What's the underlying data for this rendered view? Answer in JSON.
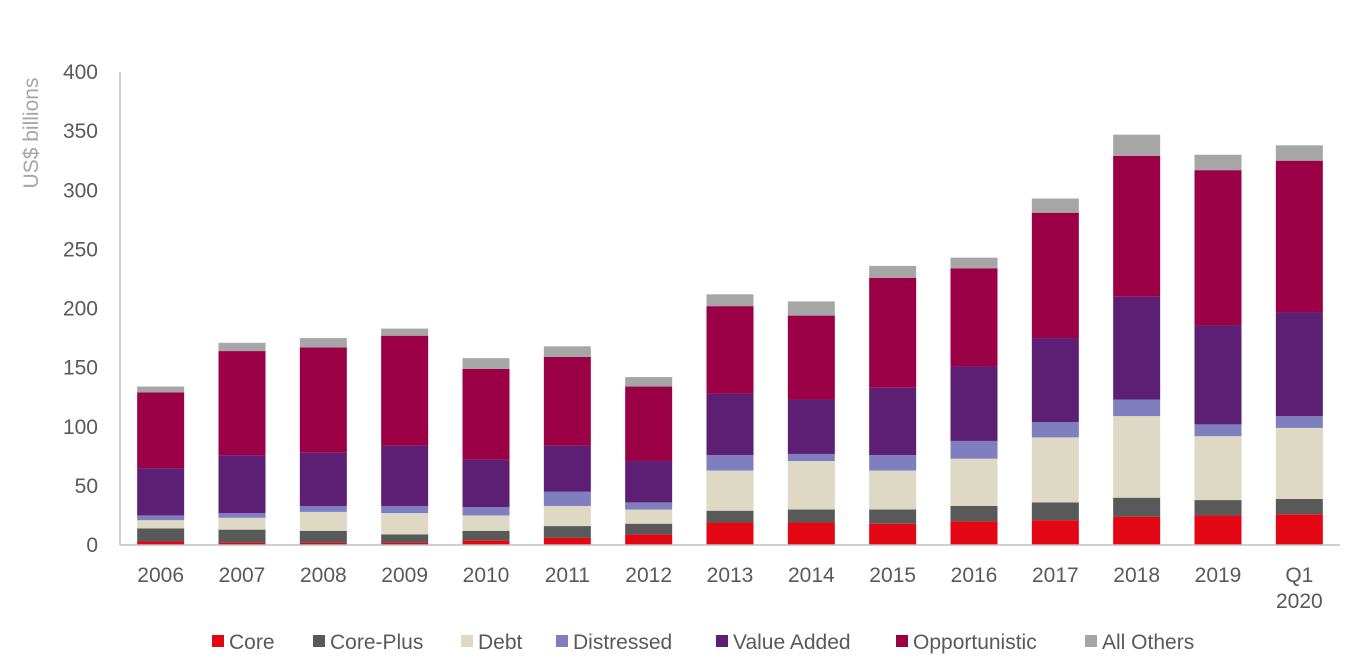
{
  "chart_data": {
    "type": "bar",
    "stacked": true,
    "title": "",
    "xlabel": "",
    "ylabel": "US$ billions",
    "ylim": [
      0,
      400
    ],
    "yticks": [
      0,
      50,
      100,
      150,
      200,
      250,
      300,
      350,
      400
    ],
    "grid": false,
    "legend_position": "bottom",
    "categories": [
      [
        "2006"
      ],
      [
        "2007"
      ],
      [
        "2008"
      ],
      [
        "2009"
      ],
      [
        "2010"
      ],
      [
        "2011"
      ],
      [
        "2012"
      ],
      [
        "2013"
      ],
      [
        "2014"
      ],
      [
        "2015"
      ],
      [
        "2016"
      ],
      [
        "2017"
      ],
      [
        "2018"
      ],
      [
        "2019"
      ],
      [
        "Q1",
        "2020"
      ]
    ],
    "series": [
      {
        "name": "Core",
        "color": "#e30613",
        "values": [
          3,
          2,
          2,
          2,
          4,
          6,
          9,
          19,
          19,
          18,
          20,
          21,
          24,
          25,
          26
        ]
      },
      {
        "name": "Core-Plus",
        "color": "#595959",
        "values": [
          11,
          11,
          10,
          7,
          8,
          10,
          9,
          10,
          11,
          12,
          13,
          15,
          16,
          13,
          13
        ]
      },
      {
        "name": "Debt",
        "color": "#ddd9c4",
        "values": [
          7,
          10,
          16,
          18,
          13,
          17,
          12,
          34,
          41,
          33,
          40,
          55,
          69,
          54,
          60
        ]
      },
      {
        "name": "Distressed",
        "color": "#7f7fbf",
        "values": [
          4,
          4,
          5,
          6,
          7,
          12,
          6,
          13,
          6,
          13,
          15,
          13,
          14,
          10,
          10
        ]
      },
      {
        "name": "Value Added",
        "color": "#5c1f74",
        "values": [
          40,
          49,
          45,
          51,
          40,
          39,
          35,
          52,
          46,
          57,
          63,
          71,
          87,
          84,
          88
        ]
      },
      {
        "name": "Opportunistic",
        "color": "#9b0046",
        "values": [
          64,
          88,
          89,
          93,
          77,
          75,
          63,
          74,
          71,
          93,
          83,
          106,
          119,
          131,
          128
        ]
      },
      {
        "name": "All Others",
        "color": "#a6a6a6",
        "values": [
          5,
          7,
          8,
          6,
          9,
          9,
          8,
          10,
          12,
          10,
          9,
          12,
          18,
          13,
          13
        ]
      }
    ]
  }
}
